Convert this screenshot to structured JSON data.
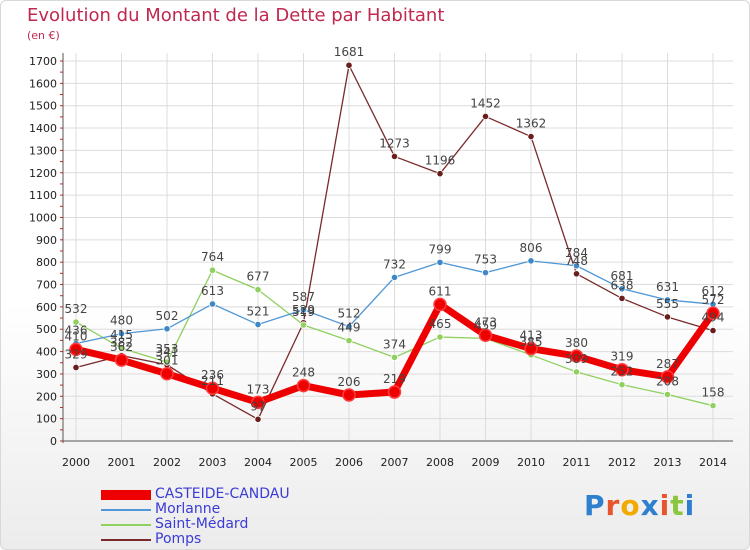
{
  "title": "Evolution du Montant de la Dette par Habitant",
  "unit": "(en €)",
  "logo": {
    "text": "Proxiti",
    "letter_colors": [
      "#2f7fd0",
      "#e8542c",
      "#f2a900",
      "#2f7fd0",
      "#e8542c",
      "#8cc63f",
      "#2f7fd0"
    ]
  },
  "chart_data": {
    "type": "line",
    "x": [
      "2000",
      "2001",
      "2002",
      "2003",
      "2004",
      "2005",
      "2006",
      "2007",
      "2008",
      "2009",
      "2010",
      "2011",
      "2012",
      "2013",
      "2014"
    ],
    "ylim": [
      0,
      1700
    ],
    "yticks": [
      0,
      100,
      200,
      300,
      400,
      500,
      600,
      700,
      800,
      900,
      1000,
      1100,
      1200,
      1300,
      1400,
      1500,
      1600,
      1700
    ],
    "grid": true,
    "legend_position": "bottom-left",
    "series": [
      {
        "name": "CASTEIDE-CANDAU",
        "color": "#ee0000",
        "marker": "#ee0000",
        "values": [
          410,
          362,
          301,
          236,
          173,
          248,
          206,
          219,
          611,
          473,
          413,
          380,
          319,
          287,
          572
        ]
      },
      {
        "name": "Morlanne",
        "color": "#4f97d6",
        "marker": "#3f88c8",
        "values": [
          436,
          480,
          502,
          613,
          521,
          587,
          512,
          732,
          799,
          753,
          806,
          784,
          681,
          631,
          612
        ]
      },
      {
        "name": "Saint-Médard",
        "color": "#8fd05e",
        "marker": "#8fd05e",
        "values": [
          532,
          415,
          353,
          764,
          677,
          519,
          449,
          374,
          465,
          459,
          385,
          309,
          252,
          208,
          158
        ]
      },
      {
        "name": "Pomps",
        "color": "#7a2a2a",
        "marker": "#6a1d1d",
        "values": [
          329,
          382,
          341,
          211,
          97,
          529,
          1681,
          1273,
          1196,
          1452,
          1362,
          748,
          638,
          555,
          494
        ]
      }
    ]
  }
}
